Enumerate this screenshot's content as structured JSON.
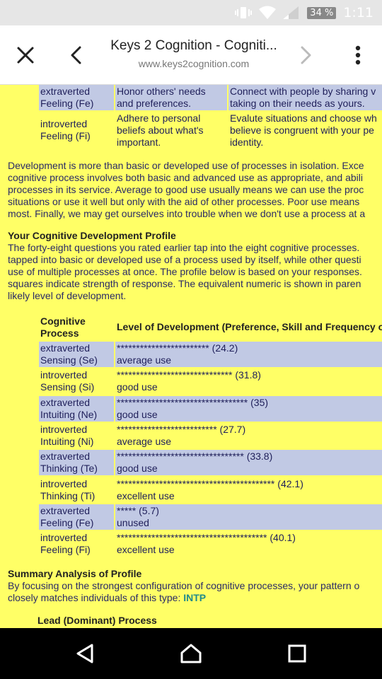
{
  "status_bar": {
    "battery": "34 %",
    "time": "1:11"
  },
  "toolbar": {
    "title": "Keys 2 Cognition - Cogniti...",
    "url": "www.keys2cognition.com"
  },
  "top_table": [
    {
      "process": [
        "extraverted",
        "Feeling (Fe)"
      ],
      "col2": [
        "Honor others' needs",
        "and preferences."
      ],
      "col3": [
        "Connect with people by sharing v",
        "taking on their needs as yours."
      ],
      "highlight": true
    },
    {
      "process": [
        "introverted",
        "Feeling (Fi)"
      ],
      "col2": [
        "Adhere to personal",
        "beliefs about what's",
        "important."
      ],
      "col3": [
        "Evalute situations and choose wh",
        "believe is congruent with your pe",
        "identity."
      ],
      "highlight": false
    }
  ],
  "development_paragraph": [
    "Development is more than basic or developed use of processes in isolation. Exce",
    "cognitive process involves both basic and advanced use as appropriate, and abili",
    "processes in its service. Average to good use usually means we can use the proc",
    "situations or use it well but only with the aid of other processes. Poor use means",
    "most. Finally, we may get ourselves into trouble when we don't use a process at a"
  ],
  "profile_heading": "Your Cognitive Development Profile",
  "profile_paragraph": [
    "The forty-eight questions you rated earlier tap into the eight cognitive processes.",
    "tapped into basic or developed use of a process used by itself, while other questi",
    "use of multiple processes at once. The profile below is based on your responses.",
    "squares indicate strength of response. The equivalent numeric is shown in paren",
    "likely level of development."
  ],
  "profile_table": {
    "header_process": [
      "Cognitive",
      "Process"
    ],
    "header_level": "Level of Development (Preference, Skill and Frequency o",
    "rows": [
      {
        "process": [
          "extraverted",
          "Sensing (Se)"
        ],
        "stars": "************************",
        "score": "(24.2)",
        "level": "average use",
        "highlight": true
      },
      {
        "process": [
          "introverted",
          "Sensing (Si)"
        ],
        "stars": "******************************",
        "score": "(31.8)",
        "level": "good use",
        "highlight": false
      },
      {
        "process": [
          "extraverted",
          "Intuiting (Ne)"
        ],
        "stars": "**********************************",
        "score": "(35)",
        "level": "good use",
        "highlight": true
      },
      {
        "process": [
          "introverted",
          "Intuiting (Ni)"
        ],
        "stars": "**************************",
        "score": "(27.7)",
        "level": "average use",
        "highlight": false
      },
      {
        "process": [
          "extraverted",
          "Thinking (Te)"
        ],
        "stars": "*********************************",
        "score": "(33.8)",
        "level": "good use",
        "highlight": true
      },
      {
        "process": [
          "introverted",
          "Thinking (Ti)"
        ],
        "stars": "*****************************************",
        "score": "(42.1)",
        "level": "excellent use",
        "highlight": false
      },
      {
        "process": [
          "extraverted",
          "Feeling (Fe)"
        ],
        "stars": "*****",
        "score": "(5.7)",
        "level": "unused",
        "highlight": true
      },
      {
        "process": [
          "introverted",
          "Feeling (Fi)"
        ],
        "stars": "***************************************",
        "score": "(40.1)",
        "level": "excellent use",
        "highlight": false
      }
    ]
  },
  "summary_heading": "Summary Analysis of Profile",
  "summary_lines": [
    "By focusing on the strongest configuration of cognitive processes, your pattern o",
    "closely matches individuals of this type:"
  ],
  "summary_type": "INTP",
  "lead_heading": "Lead (Dominant) Process",
  "colors": {
    "page_bg": "#ffff66",
    "highlight": "#c1c9e4",
    "type_link": "#1f8a8a"
  }
}
